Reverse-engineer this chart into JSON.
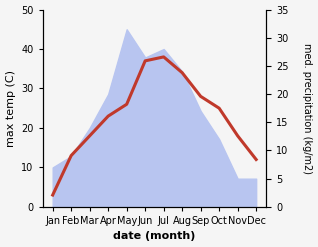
{
  "months": [
    "Jan",
    "Feb",
    "Mar",
    "Apr",
    "May",
    "Jun",
    "Jul",
    "Aug",
    "Sep",
    "Oct",
    "Nov",
    "Dec"
  ],
  "temperature": [
    3,
    13,
    18,
    23,
    26,
    37,
    38,
    34,
    28,
    25,
    18,
    12
  ],
  "precipitation_kg": [
    7,
    9,
    14,
    20,
    31.5,
    26.5,
    28,
    24,
    17,
    12,
    5,
    5
  ],
  "temp_color": "#c0392b",
  "precip_fill_color": "#b8c5f0",
  "ylabel_left": "max temp (C)",
  "ylabel_right": "med. precipitation (kg/m2)",
  "xlabel": "date (month)",
  "ylim_left": [
    0,
    50
  ],
  "ylim_right": [
    0,
    35
  ],
  "yticks_left": [
    0,
    10,
    20,
    30,
    40,
    50
  ],
  "yticks_right": [
    0,
    5,
    10,
    15,
    20,
    25,
    30,
    35
  ],
  "bg_color": "#f5f5f5",
  "line_width": 2.2,
  "font_size_ticks": 7,
  "font_size_label": 8
}
